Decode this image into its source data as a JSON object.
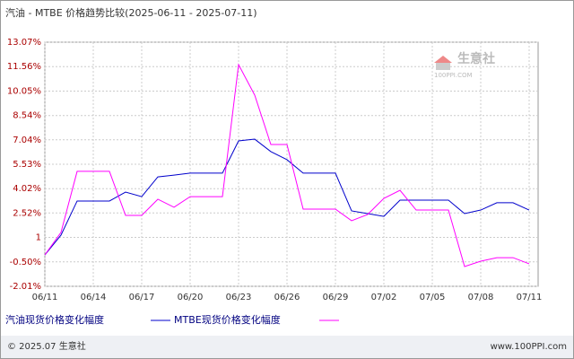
{
  "chart_data": {
    "type": "line",
    "title": "汽油 - MTBE 价格趋势比较(2025-06-11 - 2025-07-11)",
    "categories": [
      "06/11",
      null,
      null,
      "06/14",
      null,
      null,
      "06/17",
      null,
      null,
      "06/20",
      null,
      null,
      "06/23",
      null,
      null,
      "06/26",
      null,
      null,
      "06/29",
      null,
      null,
      "07/02",
      null,
      null,
      "07/05",
      null,
      null,
      "07/08",
      null,
      null,
      "07/11"
    ],
    "series": [
      {
        "name": "汽油现货价格变化幅度",
        "color": "#0000cc",
        "values": [
          -0.07,
          1.15,
          3.26,
          3.26,
          3.26,
          3.81,
          3.53,
          4.75,
          4.86,
          4.98,
          4.98,
          4.98,
          6.97,
          7.08,
          6.31,
          5.81,
          4.98,
          4.98,
          4.98,
          2.65,
          2.48,
          2.31,
          3.31,
          3.31,
          3.31,
          3.31,
          2.48,
          2.7,
          3.15,
          3.15,
          2.7
        ]
      },
      {
        "name": "MTBE现货价格变化幅度",
        "color": "#ff00ff",
        "values": [
          -0.07,
          1.32,
          5.09,
          5.09,
          5.09,
          2.37,
          2.37,
          3.37,
          2.87,
          3.53,
          3.53,
          3.53,
          11.68,
          9.8,
          6.75,
          6.75,
          2.76,
          2.76,
          2.76,
          2.04,
          2.43,
          3.42,
          3.92,
          2.7,
          2.7,
          2.7,
          -0.79,
          -0.46,
          -0.24,
          -0.24,
          -0.62
        ]
      }
    ],
    "ylim": [
      -2.01,
      13.07
    ],
    "yticks": [
      {
        "value": -2.01,
        "label": "-2.01%"
      },
      {
        "value": -0.5,
        "label": "-0.50%"
      },
      {
        "value": 1.01,
        "label": "1"
      },
      {
        "value": 2.52,
        "label": "2.52%"
      },
      {
        "value": 4.02,
        "label": "4.02%"
      },
      {
        "value": 5.53,
        "label": "5.53%"
      },
      {
        "value": 7.04,
        "label": "7.04%"
      },
      {
        "value": 8.54,
        "label": "8.54%"
      },
      {
        "value": 10.05,
        "label": "10.05%"
      },
      {
        "value": 11.56,
        "label": "11.56%"
      },
      {
        "value": 13.07,
        "label": "13.07%"
      }
    ],
    "grid": true,
    "watermark": [
      "生意社",
      "100PPI.COM"
    ],
    "footer": {
      "left": "© 2025.07 生意社",
      "right": "www.100PPI.com"
    }
  }
}
